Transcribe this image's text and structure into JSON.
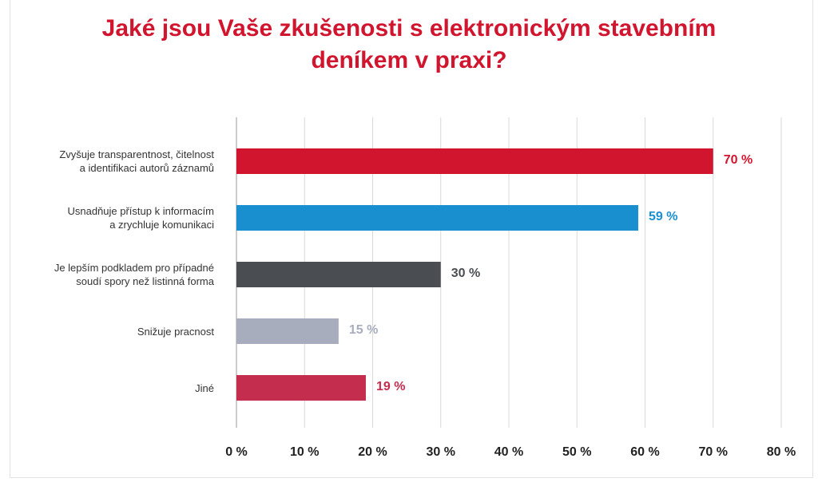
{
  "title": {
    "line1": "Jaké jsou Vaše zkušenosti s elektronickým stavebním",
    "line2": "deníkem v praxi?"
  },
  "chart_data": {
    "type": "bar",
    "orientation": "horizontal",
    "categories": [
      [
        "Zvyšuje transparentnost, čitelnost",
        "a identifikaci autorů záznamů"
      ],
      [
        "Usnadňuje přístup k informacím",
        "a zrychluje komunikaci"
      ],
      [
        "Je lepším podkladem pro případné",
        "soudí spory než listinná forma"
      ],
      [
        "Snižuje pracnost"
      ],
      [
        "Jiné"
      ]
    ],
    "values": [
      70,
      59,
      30,
      15,
      19
    ],
    "value_labels": [
      "70 %",
      "59 %",
      "30 %",
      "15 %",
      "19 %"
    ],
    "colors": [
      "#d2152f",
      "#1a8fd0",
      "#4a4d52",
      "#a7adbd",
      "#c42d4e"
    ],
    "xlim": [
      0,
      80
    ],
    "xticks": [
      0,
      10,
      20,
      30,
      40,
      50,
      60,
      70,
      80
    ],
    "xtick_labels": [
      "0 %",
      "10 %",
      "20 %",
      "30 %",
      "40 %",
      "50 %",
      "60 %",
      "70 %",
      "80 %"
    ],
    "grid": true,
    "legend": "none"
  }
}
